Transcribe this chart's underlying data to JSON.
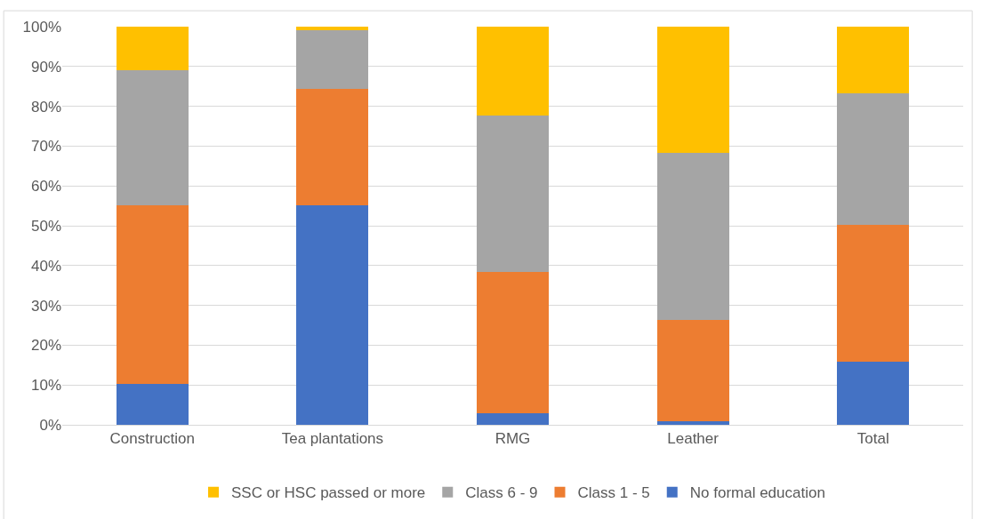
{
  "chart_data": {
    "type": "bar",
    "stacked": true,
    "categories": [
      "Construction",
      "Tea plantations",
      "RMG",
      "Leather",
      "Total"
    ],
    "series": [
      {
        "name": "No formal education",
        "color": "#4472c4",
        "values": [
          10.3,
          55.1,
          3.0,
          1.0,
          15.8
        ]
      },
      {
        "name": "Class 1 - 5",
        "color": "#ed7d31",
        "values": [
          44.8,
          29.3,
          35.3,
          25.3,
          34.4
        ]
      },
      {
        "name": "Class 6 - 9",
        "color": "#a5a5a5",
        "values": [
          34.0,
          14.6,
          39.4,
          42.1,
          33.1
        ]
      },
      {
        "name": "SSC or HSC passed or more",
        "color": "#ffc000",
        "values": [
          10.9,
          1.0,
          22.3,
          31.6,
          16.7
        ]
      }
    ],
    "ylim": [
      0,
      100
    ],
    "yticks": [
      {
        "value": 0,
        "label": "0%"
      },
      {
        "value": 10,
        "label": "10%"
      },
      {
        "value": 20,
        "label": "20%"
      },
      {
        "value": 30,
        "label": "30%"
      },
      {
        "value": 40,
        "label": "40%"
      },
      {
        "value": 50,
        "label": "50%"
      },
      {
        "value": 60,
        "label": "60%"
      },
      {
        "value": 70,
        "label": "70%"
      },
      {
        "value": 80,
        "label": "80%"
      },
      {
        "value": 90,
        "label": "90%"
      },
      {
        "value": 100,
        "label": "100%"
      }
    ],
    "grid": "y",
    "legend": "bottom"
  }
}
